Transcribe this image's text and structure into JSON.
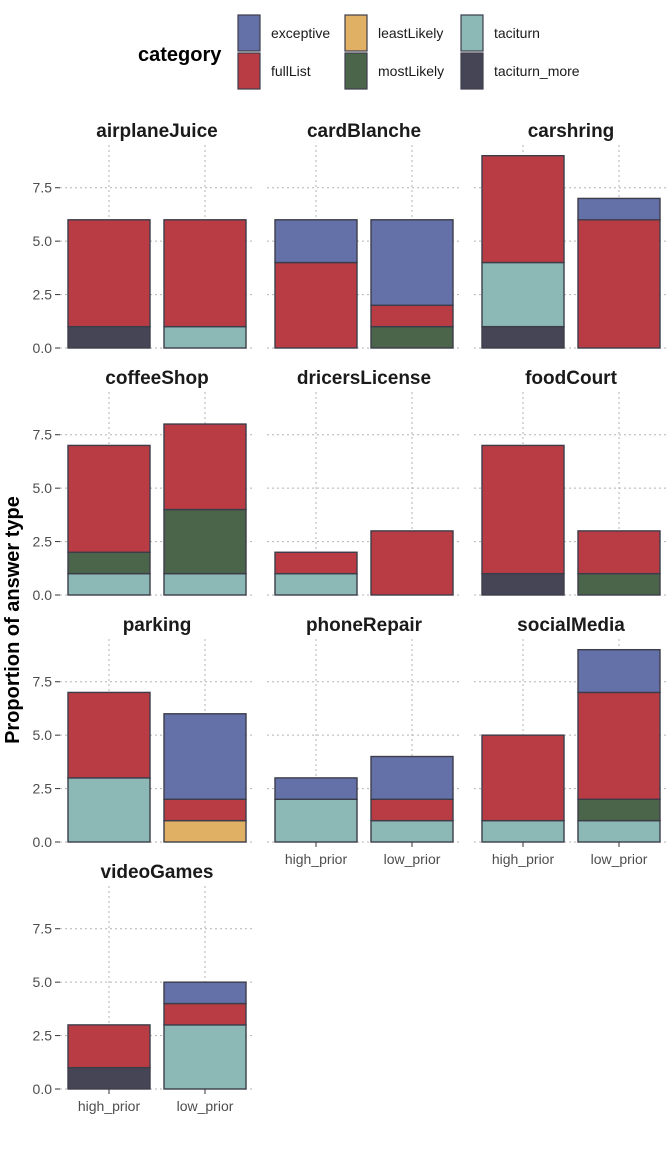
{
  "chart_data": {
    "type": "bar",
    "stacked": true,
    "ylabel": "Proportion of answer type",
    "xlabel": "",
    "ylim": [
      0,
      9.5
    ],
    "yticks": [
      0.0,
      2.5,
      5.0,
      7.5
    ],
    "ytick_labels": [
      "0.0",
      "2.5",
      "5.0",
      "7.5"
    ],
    "grid": true,
    "legend": {
      "title": "category",
      "position": "top",
      "entries": [
        {
          "name": "exceptive",
          "color": "#6470a8"
        },
        {
          "name": "fullList",
          "color": "#b93c45"
        },
        {
          "name": "leastLikely",
          "color": "#e0b065"
        },
        {
          "name": "mostLikely",
          "color": "#4a654a"
        },
        {
          "name": "taciturn",
          "color": "#8cb8b6"
        },
        {
          "name": "taciturn_more",
          "color": "#454555"
        }
      ]
    },
    "stack_order": [
      "taciturn_more",
      "taciturn",
      "mostLikely",
      "leastLikely",
      "fullList",
      "exceptive"
    ],
    "categories": [
      "high_prior",
      "low_prior"
    ],
    "facets": [
      {
        "name": "airplaneJuice",
        "bars": [
          {
            "taciturn_more": 1,
            "fullList": 5
          },
          {
            "taciturn": 1,
            "fullList": 5
          }
        ]
      },
      {
        "name": "cardBlanche",
        "bars": [
          {
            "fullList": 4,
            "exceptive": 2
          },
          {
            "mostLikely": 1,
            "fullList": 1,
            "exceptive": 4
          }
        ]
      },
      {
        "name": "carshring",
        "bars": [
          {
            "taciturn_more": 1,
            "taciturn": 3,
            "fullList": 5
          },
          {
            "fullList": 6,
            "exceptive": 1
          }
        ]
      },
      {
        "name": "coffeeShop",
        "bars": [
          {
            "taciturn": 1,
            "mostLikely": 1,
            "fullList": 5
          },
          {
            "taciturn": 1,
            "mostLikely": 3,
            "fullList": 4
          }
        ]
      },
      {
        "name": "dricersLicense",
        "bars": [
          {
            "taciturn": 1,
            "fullList": 1
          },
          {
            "fullList": 3
          }
        ]
      },
      {
        "name": "foodCourt",
        "bars": [
          {
            "taciturn_more": 1,
            "fullList": 6
          },
          {
            "mostLikely": 1,
            "fullList": 2
          }
        ]
      },
      {
        "name": "parking",
        "bars": [
          {
            "taciturn": 3,
            "fullList": 4
          },
          {
            "leastLikely": 1,
            "fullList": 1,
            "exceptive": 4
          }
        ]
      },
      {
        "name": "phoneRepair",
        "bars": [
          {
            "taciturn": 2,
            "exceptive": 1
          },
          {
            "taciturn": 1,
            "fullList": 1,
            "exceptive": 2
          }
        ]
      },
      {
        "name": "socialMedia",
        "bars": [
          {
            "taciturn": 1,
            "fullList": 4
          },
          {
            "taciturn": 1,
            "mostLikely": 1,
            "fullList": 5,
            "exceptive": 2
          }
        ]
      },
      {
        "name": "videoGames",
        "bars": [
          {
            "taciturn_more": 1,
            "fullList": 2
          },
          {
            "taciturn": 3,
            "fullList": 1,
            "exceptive": 1
          }
        ]
      }
    ]
  }
}
